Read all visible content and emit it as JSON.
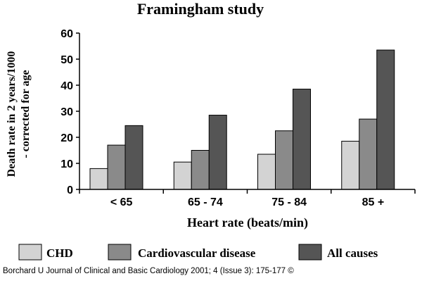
{
  "chart_data": {
    "type": "bar",
    "title": "Framingham study",
    "ylabel_lines": [
      "Death rate in 2 years/1000",
      "- corrected for age"
    ],
    "xlabel": "Heart rate (beats/min)",
    "categories": [
      "< 65",
      "65 - 74",
      "75 - 84",
      "85 +"
    ],
    "ylim": [
      0,
      60
    ],
    "yticks": [
      0,
      10,
      20,
      30,
      40,
      50,
      60
    ],
    "grid": false,
    "legend_position": "bottom",
    "series": [
      {
        "name": "CHD",
        "color": "#d3d3d3",
        "values": [
          8,
          10.5,
          13.5,
          18.5
        ]
      },
      {
        "name": "Cardiovascular disease",
        "color": "#8a8a8a",
        "values": [
          17,
          15,
          22.5,
          27
        ]
      },
      {
        "name": "All causes",
        "color": "#555555",
        "values": [
          24.5,
          28.5,
          38.5,
          53.5
        ]
      }
    ]
  },
  "footer": {
    "credit": "Borchard U Journal of Clinical and Basic Cardiology 2001; 4 (Issue 3): 175-177 ©"
  }
}
